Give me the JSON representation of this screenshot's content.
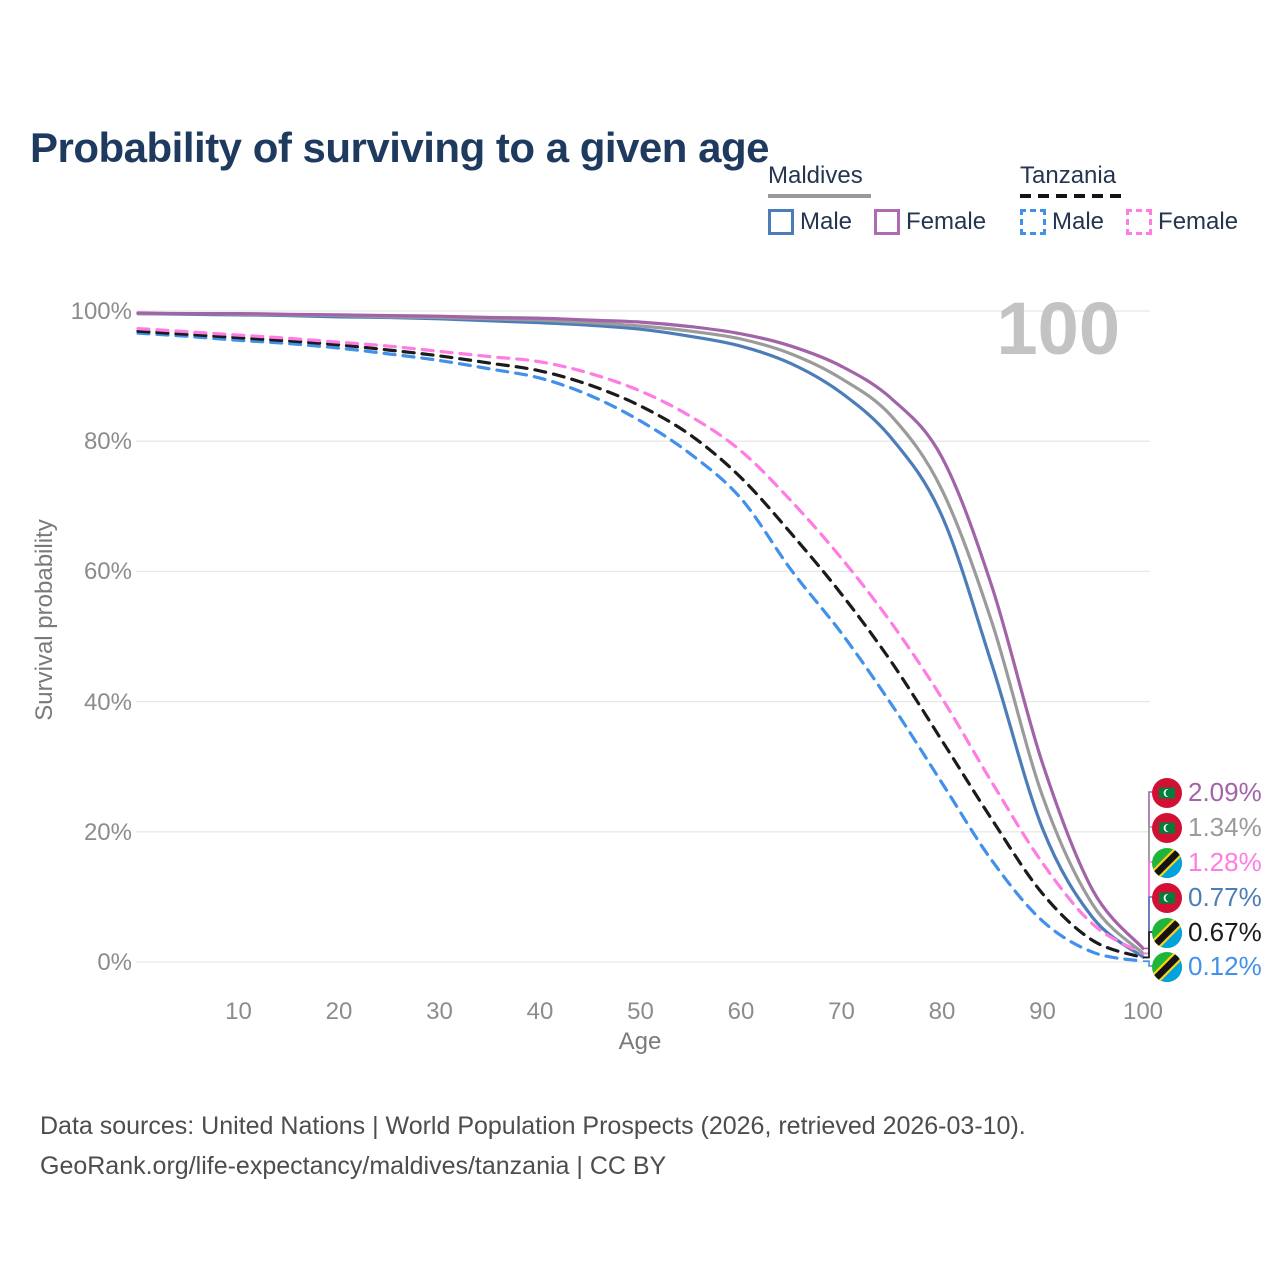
{
  "title": "Probability of surviving to a given age",
  "watermark_age": "100",
  "legend": {
    "groups": [
      {
        "id": "maldives",
        "title": "Maldives",
        "line_style": "solid",
        "underline_color": "#9a9a9a",
        "items": [
          {
            "label": "Male",
            "color": "#4d7db9",
            "dashed": false
          },
          {
            "label": "Female",
            "color": "#b06ab2",
            "dashed": false
          }
        ]
      },
      {
        "id": "tanzania",
        "title": "Tanzania",
        "line_style": "dashed",
        "underline_color": "#141414",
        "items": [
          {
            "label": "Male",
            "color": "#4191ea",
            "dashed": true
          },
          {
            "label": "Female",
            "color": "#ff7ce3",
            "dashed": true
          }
        ]
      }
    ]
  },
  "chart_data": {
    "type": "line",
    "title": "Probability of surviving to a given age",
    "xlabel": "Age",
    "ylabel": "Survival probability",
    "xlim": [
      0,
      100
    ],
    "ylim": [
      0,
      100
    ],
    "grid": "horizontal",
    "x_ticks": [
      "10",
      "20",
      "30",
      "40",
      "50",
      "60",
      "70",
      "80",
      "90",
      "100"
    ],
    "x_tick_values": [
      10,
      20,
      30,
      40,
      50,
      60,
      70,
      80,
      90,
      100
    ],
    "y_ticks": [
      "0%",
      "20%",
      "40%",
      "60%",
      "80%",
      "100%"
    ],
    "y_tick_values": [
      0,
      20,
      40,
      60,
      80,
      100
    ],
    "x": [
      0,
      5,
      10,
      15,
      20,
      25,
      30,
      35,
      40,
      45,
      50,
      55,
      60,
      65,
      70,
      75,
      80,
      85,
      90,
      95,
      100
    ],
    "series": [
      {
        "name": "Maldives — Female",
        "country": "Maldives",
        "sex": "Female",
        "color": "#a263a8",
        "dashed": false,
        "end_label": "2.09%",
        "values": [
          99.7,
          99.6,
          99.6,
          99.5,
          99.4,
          99.3,
          99.2,
          99.0,
          98.9,
          98.6,
          98.3,
          97.6,
          96.5,
          94.6,
          91.5,
          86.5,
          77.5,
          57.5,
          30.5,
          11.0,
          2.09
        ]
      },
      {
        "name": "Maldives — Both sexes",
        "country": "Maldives",
        "sex": "Both",
        "color": "#9b9b9b",
        "dashed": false,
        "end_label": "1.34%",
        "values": [
          99.6,
          99.6,
          99.5,
          99.4,
          99.3,
          99.1,
          99.0,
          98.8,
          98.6,
          98.2,
          97.7,
          96.9,
          95.7,
          93.4,
          89.6,
          83.8,
          72.5,
          52.0,
          25.5,
          8.8,
          1.34
        ]
      },
      {
        "name": "Tanzania — Female",
        "country": "Tanzania",
        "sex": "Female",
        "color": "#ff7ce3",
        "dashed": true,
        "end_label": "1.28%",
        "values": [
          97.3,
          96.8,
          96.3,
          95.8,
          95.2,
          94.6,
          93.8,
          93.0,
          92.2,
          90.4,
          87.7,
          83.8,
          78.5,
          70.8,
          62.0,
          52.0,
          40.5,
          27.5,
          15.2,
          5.8,
          1.28
        ]
      },
      {
        "name": "Maldives — Male",
        "country": "Maldives",
        "sex": "Male",
        "color": "#4d7db9",
        "dashed": false,
        "end_label": "0.77%",
        "values": [
          99.6,
          99.5,
          99.4,
          99.3,
          99.1,
          99.0,
          98.8,
          98.5,
          98.2,
          97.8,
          97.2,
          96.1,
          94.6,
          91.9,
          87.4,
          80.4,
          68.5,
          45.5,
          20.5,
          6.8,
          0.77
        ]
      },
      {
        "name": "Tanzania — Both sexes",
        "country": "Tanzania",
        "sex": "Both",
        "color": "#1b1b1b",
        "dashed": true,
        "end_label": "0.67%",
        "values": [
          96.9,
          96.4,
          95.9,
          95.4,
          94.8,
          94.0,
          93.1,
          92.0,
          90.8,
          88.6,
          85.4,
          80.9,
          74.4,
          65.8,
          56.5,
          46.0,
          34.0,
          21.8,
          10.5,
          3.3,
          0.67
        ]
      },
      {
        "name": "Tanzania — Male",
        "country": "Tanzania",
        "sex": "Male",
        "color": "#4191ea",
        "dashed": true,
        "end_label": "0.12%",
        "values": [
          96.6,
          96.1,
          95.5,
          95.0,
          94.3,
          93.4,
          92.4,
          91.1,
          89.7,
          87.0,
          83.1,
          78.0,
          71.2,
          60.2,
          50.5,
          39.5,
          27.5,
          15.5,
          6.3,
          1.5,
          0.12
        ]
      }
    ],
    "flag_colors": {
      "maldives": {
        "red": "#d21034",
        "green": "#007e3a",
        "crescent": "#ffffff"
      },
      "tanzania": {
        "green": "#1eb53a",
        "blue": "#00a3dd",
        "black": "#141414",
        "yellow": "#fcd116"
      }
    }
  },
  "footer": {
    "line1": "Data sources: United Nations | World Population Prospects (2026, retrieved 2026-03-10).",
    "line2": "GeoRank.org/life-expectancy/maldives/tanzania | CC BY"
  }
}
